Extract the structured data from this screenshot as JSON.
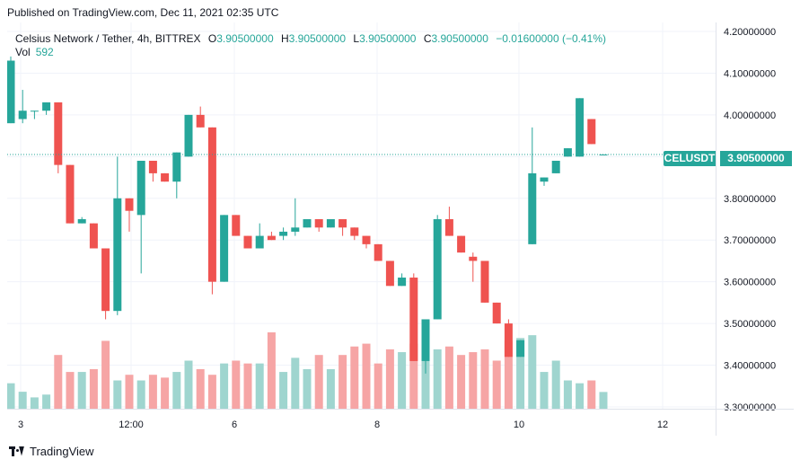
{
  "published": "Published on TradingView.com, Dec 11, 2021 02:35 UTC",
  "legend": {
    "symbol": "Celsius Network / Tether, 4h, BITTREX",
    "o_label": "O",
    "o": "3.90500000",
    "h_label": "H",
    "h": "3.90500000",
    "l_label": "L",
    "l": "3.90500000",
    "c_label": "C",
    "c": "3.90500000",
    "change": "−0.01600000 (−0.41%)",
    "vol_label": "Vol",
    "vol": "592"
  },
  "price_tag": {
    "symbol": "CELUSDT",
    "price": "3.90500000"
  },
  "footer": {
    "brand": "TradingView",
    "logo_icon": "tradingview-logo-icon"
  },
  "colors": {
    "up": "#26a69a",
    "down": "#ef5350",
    "vol_up": "#9fd5cf",
    "vol_down": "#f6a5a5",
    "last_line": "#26a69a"
  },
  "chart_data": {
    "type": "candlestick",
    "y_axis_labels": [
      "4.20000000",
      "4.10000000",
      "4.00000000",
      "3.90000000",
      "3.80000000",
      "3.70000000",
      "3.60000000",
      "3.50000000",
      "3.40000000",
      "3.30000000"
    ],
    "x_axis_labels": [
      "3",
      "12:00",
      "6",
      "8",
      "10",
      "12"
    ],
    "ylim": [
      3.3,
      4.2
    ],
    "last_price": 3.905,
    "candles": [
      {
        "o": 3.98,
        "h": 4.14,
        "l": 3.98,
        "c": 4.13,
        "v": 900
      },
      {
        "o": 3.99,
        "h": 4.06,
        "l": 3.98,
        "c": 4.01,
        "v": 600
      },
      {
        "o": 4.01,
        "h": 4.01,
        "l": 3.99,
        "c": 4.01,
        "v": 400
      },
      {
        "o": 4.01,
        "h": 4.03,
        "l": 4.0,
        "c": 4.03,
        "v": 500
      },
      {
        "o": 4.03,
        "h": 4.03,
        "l": 3.86,
        "c": 3.88,
        "v": 1900
      },
      {
        "o": 3.88,
        "h": 3.88,
        "l": 3.74,
        "c": 3.74,
        "v": 1300
      },
      {
        "o": 3.74,
        "h": 3.755,
        "l": 3.74,
        "c": 3.75,
        "v": 1300
      },
      {
        "o": 3.74,
        "h": 3.74,
        "l": 3.68,
        "c": 3.68,
        "v": 1400
      },
      {
        "o": 3.68,
        "h": 3.68,
        "l": 3.51,
        "c": 3.53,
        "v": 2400
      },
      {
        "o": 3.53,
        "h": 3.9,
        "l": 3.52,
        "c": 3.8,
        "v": 1000
      },
      {
        "o": 3.8,
        "h": 3.8,
        "l": 3.72,
        "c": 3.77,
        "v": 1200
      },
      {
        "o": 3.76,
        "h": 3.89,
        "l": 3.62,
        "c": 3.89,
        "v": 1000
      },
      {
        "o": 3.89,
        "h": 3.89,
        "l": 3.84,
        "c": 3.86,
        "v": 1200
      },
      {
        "o": 3.86,
        "h": 3.86,
        "l": 3.84,
        "c": 3.84,
        "v": 1100
      },
      {
        "o": 3.84,
        "h": 3.91,
        "l": 3.8,
        "c": 3.91,
        "v": 1300
      },
      {
        "o": 3.9,
        "h": 4.0,
        "l": 3.9,
        "c": 4.0,
        "v": 1700
      },
      {
        "o": 4.0,
        "h": 4.02,
        "l": 3.97,
        "c": 3.97,
        "v": 1400
      },
      {
        "o": 3.97,
        "h": 3.97,
        "l": 3.57,
        "c": 3.6,
        "v": 1200
      },
      {
        "o": 3.6,
        "h": 3.76,
        "l": 3.6,
        "c": 3.76,
        "v": 1600
      },
      {
        "o": 3.76,
        "h": 3.76,
        "l": 3.71,
        "c": 3.71,
        "v": 1700
      },
      {
        "o": 3.71,
        "h": 3.71,
        "l": 3.68,
        "c": 3.68,
        "v": 1600
      },
      {
        "o": 3.68,
        "h": 3.74,
        "l": 3.68,
        "c": 3.71,
        "v": 1600
      },
      {
        "o": 3.71,
        "h": 3.72,
        "l": 3.7,
        "c": 3.7,
        "v": 2700
      },
      {
        "o": 3.71,
        "h": 3.73,
        "l": 3.7,
        "c": 3.72,
        "v": 1300
      },
      {
        "o": 3.72,
        "h": 3.8,
        "l": 3.71,
        "c": 3.73,
        "v": 1800
      },
      {
        "o": 3.73,
        "h": 3.75,
        "l": 3.73,
        "c": 3.75,
        "v": 1400
      },
      {
        "o": 3.75,
        "h": 3.75,
        "l": 3.72,
        "c": 3.73,
        "v": 1900
      },
      {
        "o": 3.73,
        "h": 3.75,
        "l": 3.73,
        "c": 3.75,
        "v": 1400
      },
      {
        "o": 3.75,
        "h": 3.75,
        "l": 3.71,
        "c": 3.73,
        "v": 1900
      },
      {
        "o": 3.73,
        "h": 3.73,
        "l": 3.7,
        "c": 3.71,
        "v": 2200
      },
      {
        "o": 3.71,
        "h": 3.71,
        "l": 3.68,
        "c": 3.69,
        "v": 2300
      },
      {
        "o": 3.69,
        "h": 3.69,
        "l": 3.65,
        "c": 3.65,
        "v": 1600
      },
      {
        "o": 3.65,
        "h": 3.65,
        "l": 3.59,
        "c": 3.59,
        "v": 2100
      },
      {
        "o": 3.59,
        "h": 3.62,
        "l": 3.59,
        "c": 3.61,
        "v": 2000
      },
      {
        "o": 3.61,
        "h": 3.62,
        "l": 3.41,
        "c": 3.41,
        "v": 2300
      },
      {
        "o": 3.41,
        "h": 3.51,
        "l": 3.38,
        "c": 3.51,
        "v": 1900
      },
      {
        "o": 3.51,
        "h": 3.76,
        "l": 3.51,
        "c": 3.75,
        "v": 2100
      },
      {
        "o": 3.75,
        "h": 3.78,
        "l": 3.71,
        "c": 3.71,
        "v": 2200
      },
      {
        "o": 3.71,
        "h": 3.71,
        "l": 3.67,
        "c": 3.67,
        "v": 1900
      },
      {
        "o": 3.66,
        "h": 3.67,
        "l": 3.6,
        "c": 3.65,
        "v": 2000
      },
      {
        "o": 3.65,
        "h": 3.65,
        "l": 3.55,
        "c": 3.55,
        "v": 2100
      },
      {
        "o": 3.55,
        "h": 3.55,
        "l": 3.5,
        "c": 3.5,
        "v": 1700
      },
      {
        "o": 3.5,
        "h": 3.51,
        "l": 3.42,
        "c": 3.42,
        "v": 2400
      },
      {
        "o": 3.42,
        "h": 3.46,
        "l": 3.42,
        "c": 3.46,
        "v": 2500
      },
      {
        "o": 3.69,
        "h": 3.97,
        "l": 3.69,
        "c": 3.86,
        "v": 2600
      },
      {
        "o": 3.84,
        "h": 3.85,
        "l": 3.83,
        "c": 3.85,
        "v": 1300
      },
      {
        "o": 3.86,
        "h": 3.89,
        "l": 3.86,
        "c": 3.89,
        "v": 1700
      },
      {
        "o": 3.9,
        "h": 3.92,
        "l": 3.9,
        "c": 3.92,
        "v": 1000
      },
      {
        "o": 3.9,
        "h": 4.04,
        "l": 3.9,
        "c": 4.04,
        "v": 900
      },
      {
        "o": 3.99,
        "h": 3.99,
        "l": 3.93,
        "c": 3.93,
        "v": 1000
      },
      {
        "o": 3.905,
        "h": 3.905,
        "l": 3.905,
        "c": 3.905,
        "v": 592
      }
    ]
  }
}
